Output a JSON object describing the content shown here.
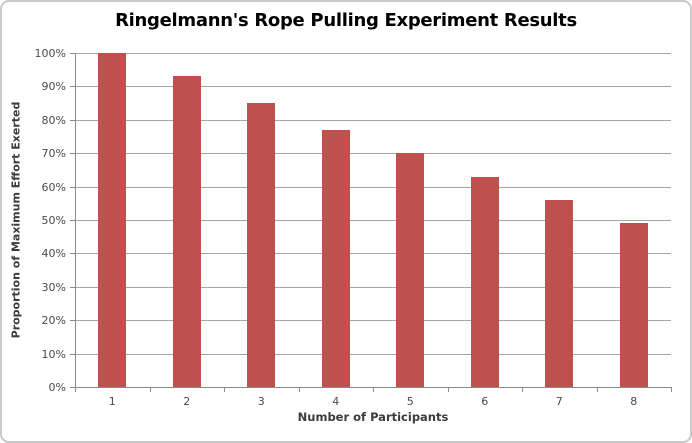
{
  "chart_data": {
    "type": "bar",
    "title": "Ringelmann's Rope Pulling Experiment Results",
    "xlabel": "Number of Participants",
    "ylabel": "Proportion of Maximum Effort Exerted",
    "categories": [
      "1",
      "2",
      "3",
      "4",
      "5",
      "6",
      "7",
      "8"
    ],
    "values": [
      100,
      93,
      85,
      77,
      70,
      63,
      56,
      49
    ],
    "ylim": [
      0,
      100
    ],
    "ytick_step": 10,
    "ytick_suffix": "%",
    "grid": true,
    "legend": "none",
    "colors": {
      "bar": "#C0504D",
      "gridline": "#A6A6A6",
      "axis": "#8A8A8A",
      "tick_label": "#4A4A4A",
      "axis_title": "#3B3B3B",
      "title": "#000000",
      "frame_border": "#C9C9C9",
      "background": "#FFFFFF"
    }
  }
}
